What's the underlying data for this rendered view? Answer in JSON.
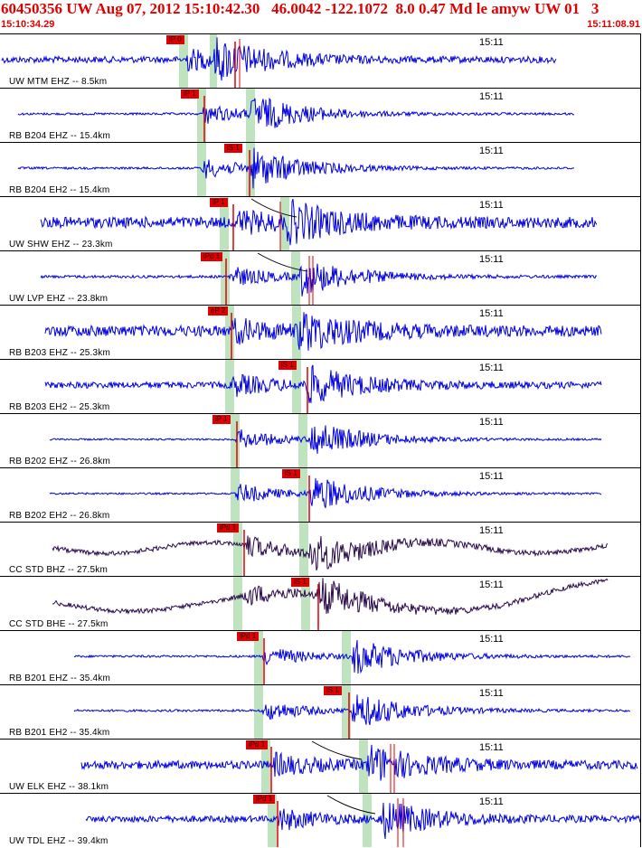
{
  "header": {
    "title": "60450356 UW Aug 07, 2012 15:10:42.30   46.0042 -122.1072  8.0 0.47 Md le amyw UW 01   3",
    "start_time": "15:10:34.29",
    "end_time": "15:11:08.91"
  },
  "colors": {
    "title": "#e00000",
    "trace_blue": "#0000e0",
    "trace_dark": "#2a0a4a",
    "pick": "#e00000",
    "window": "#bfe3bf"
  },
  "panels": [
    {
      "station": "UW MTM EHZ -- 8.5km",
      "time_label": "15:11",
      "pick_label": "iP 0",
      "color": "blue",
      "amp": 0.35
    },
    {
      "station": "RB B204 EHZ -- 15.4km",
      "time_label": "15:11",
      "pick_label": "iP 1",
      "color": "blue",
      "amp": 0.12
    },
    {
      "station": "RB B204 EH2 -- 15.4km",
      "time_label": "15:11",
      "pick_label": "iS 1",
      "color": "blue",
      "amp": 0.12
    },
    {
      "station": "UW SHW EHZ -- 23.3km",
      "time_label": "15:11",
      "pick_label": "iP 1",
      "color": "blue",
      "amp": 0.6
    },
    {
      "station": "UW LVP EHZ -- 23.8km",
      "time_label": "15:11",
      "pick_label": "iPd 1",
      "color": "blue",
      "amp": 0.15
    },
    {
      "station": "RB B203 EHZ -- 25.3km",
      "time_label": "15:11",
      "pick_label": "eP 2",
      "color": "blue",
      "amp": 0.6
    },
    {
      "station": "RB B203 EH2 -- 25.3km",
      "time_label": "15:11",
      "pick_label": "iS 1",
      "color": "blue",
      "amp": 0.35
    },
    {
      "station": "RB B202 EHZ -- 26.8km",
      "time_label": "15:11",
      "pick_label": "iP 1",
      "color": "blue",
      "amp": 0.1
    },
    {
      "station": "RB B202 EH2 -- 26.8km",
      "time_label": "15:11",
      "pick_label": "iS 1",
      "color": "blue",
      "amp": 0.1
    },
    {
      "station": "CC STD BHZ -- 27.5km",
      "time_label": "15:11",
      "pick_label": "iPd 1",
      "color": "dark",
      "amp": 0.25
    },
    {
      "station": "CC STD BHE -- 27.5km",
      "time_label": "15:11",
      "pick_label": "iS 1",
      "color": "dark",
      "amp": 0.25
    },
    {
      "station": "RB B201 EHZ -- 35.4km",
      "time_label": "15:11",
      "pick_label": "iPd 1",
      "color": "blue",
      "amp": 0.12
    },
    {
      "station": "RB B201 EH2 -- 35.4km",
      "time_label": "15:11",
      "pick_label": "iS 1",
      "color": "blue",
      "amp": 0.12
    },
    {
      "station": "UW ELK EHZ -- 38.1km",
      "time_label": "15:11",
      "pick_label": "iPd 1",
      "color": "blue",
      "amp": 0.45
    },
    {
      "station": "UW TDL EHZ -- 39.4km",
      "time_label": "15:11",
      "pick_label": "iPd 1",
      "color": "blue",
      "amp": 0.35
    }
  ]
}
